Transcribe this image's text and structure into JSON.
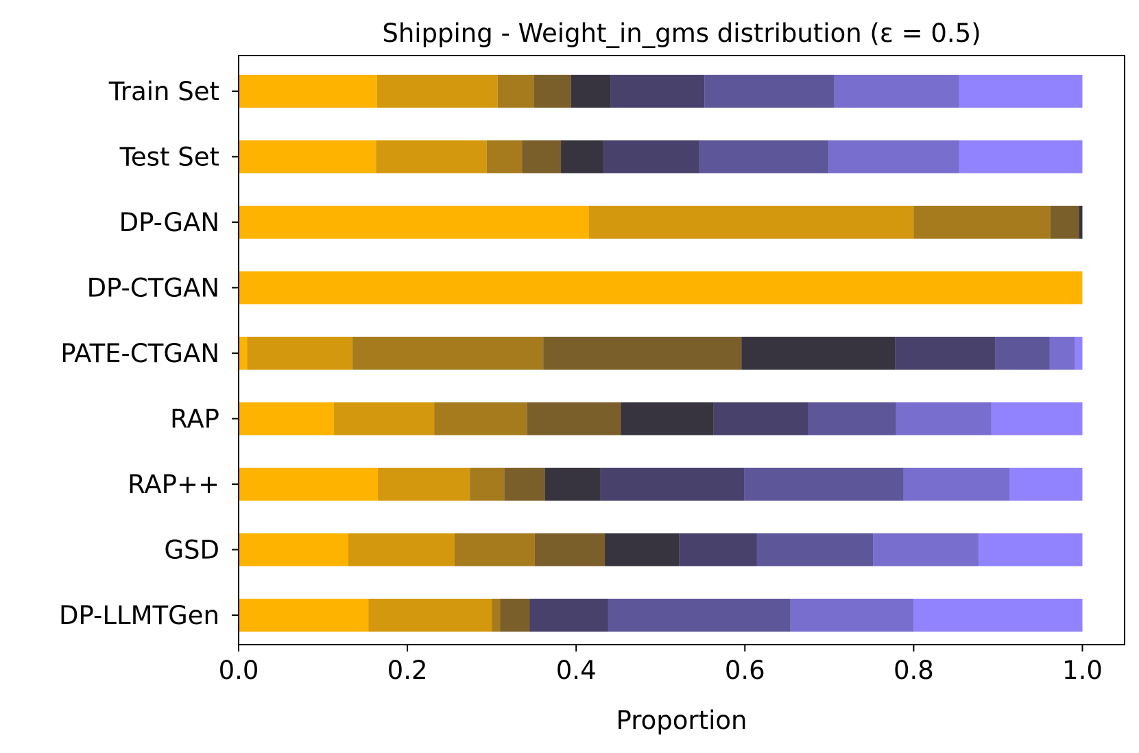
{
  "chart_data": {
    "type": "bar",
    "orientation": "horizontal",
    "stacked": true,
    "title": "Shipping - Weight_in_gms distribution (ε = 0.5)",
    "xlabel": "Proportion",
    "ylabel": "",
    "xlim": [
      0.0,
      1.05
    ],
    "xticks": [
      0.0,
      0.2,
      0.4,
      0.6,
      0.8,
      1.0
    ],
    "xtick_labels": [
      "0.0",
      "0.2",
      "0.4",
      "0.6",
      "0.8",
      "1.0"
    ],
    "grid": false,
    "legend": "none",
    "categories": [
      "Train Set",
      "Test Set",
      "DP-GAN",
      "DP-CTGAN",
      "PATE-CTGAN",
      "RAP",
      "RAP++",
      "GSD",
      "DP-LLMTGen"
    ],
    "segment_colors": [
      "#fdb300",
      "#d4980e",
      "#a57b1d",
      "#7b5f2b",
      "#37343f",
      "#48416b",
      "#5d5699",
      "#786ecd",
      "#9183fe"
    ],
    "proportions": [
      [
        0.164,
        0.143,
        0.043,
        0.044,
        0.047,
        0.111,
        0.154,
        0.148,
        0.146
      ],
      [
        0.163,
        0.131,
        0.042,
        0.046,
        0.05,
        0.114,
        0.153,
        0.155,
        0.146
      ],
      [
        0.415,
        0.385,
        0.162,
        0.034,
        0.004,
        0.0,
        0.0,
        0.0,
        0.0
      ],
      [
        1.0,
        0.0,
        0.0,
        0.0,
        0.0,
        0.0,
        0.0,
        0.0,
        0.0
      ],
      [
        0.01,
        0.125,
        0.226,
        0.235,
        0.182,
        0.119,
        0.064,
        0.03,
        0.009
      ],
      [
        0.113,
        0.119,
        0.11,
        0.111,
        0.11,
        0.112,
        0.104,
        0.113,
        0.108
      ],
      [
        0.165,
        0.109,
        0.041,
        0.048,
        0.066,
        0.17,
        0.189,
        0.126,
        0.086
      ],
      [
        0.13,
        0.126,
        0.095,
        0.083,
        0.088,
        0.092,
        0.138,
        0.125,
        0.123
      ],
      [
        0.154,
        0.146,
        0.01,
        0.035,
        0.0,
        0.093,
        0.216,
        0.146,
        0.2
      ]
    ]
  }
}
